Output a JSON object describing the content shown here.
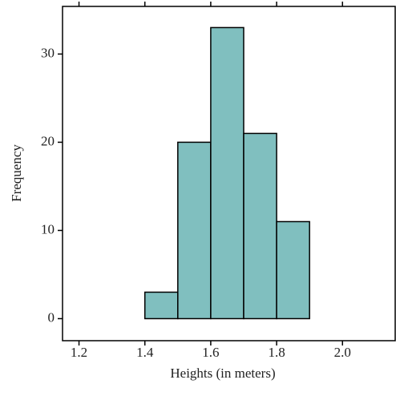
{
  "chart_data": {
    "type": "histogram",
    "x_label": "Heights (in meters)",
    "y_label": "Frequency",
    "bins": [
      1.2,
      1.3,
      1.4,
      1.5,
      1.6,
      1.7,
      1.8,
      1.9,
      2.0,
      2.1
    ],
    "values": [
      0,
      0,
      3,
      20,
      33,
      21,
      11,
      0,
      0
    ],
    "color": "#80bfbf",
    "xlim": [
      1.15,
      2.16
    ],
    "ylim": [
      -2.5,
      35.4
    ],
    "xticks": [
      1.2,
      1.4,
      1.6,
      1.8,
      {
        "value": 2,
        "label": "2.0"
      }
    ],
    "yticks": [
      0,
      10,
      20,
      30
    ]
  }
}
